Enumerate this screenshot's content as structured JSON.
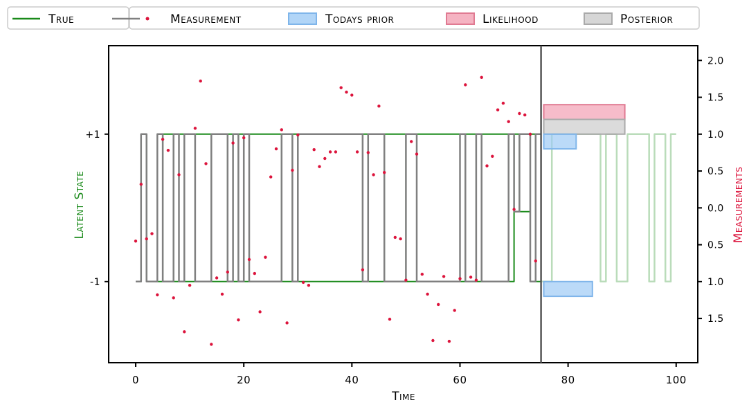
{
  "chart_data": {
    "type": "line",
    "title": "",
    "xlabel": "Time",
    "ylabel_left": "Latent State",
    "ylabel_right": "Measurements",
    "xlim": [
      -5,
      104
    ],
    "ylim": [
      -2.1,
      2.2
    ],
    "x_ticks": [
      0,
      20,
      40,
      60,
      80,
      100
    ],
    "x_tick_labels": [
      "0",
      "20",
      "40",
      "60",
      "80",
      "100"
    ],
    "left_ticks": [
      1,
      -1
    ],
    "left_tick_labels": [
      "+1",
      "-1"
    ],
    "right_ticks": [
      2.0,
      1.5,
      1.0,
      0.5,
      0.0,
      -0.5,
      -1.0,
      -1.5
    ],
    "right_tick_labels": [
      "2.0",
      "1.5",
      "1.0",
      "0.5",
      "0.0",
      "0.5",
      "1.0",
      "1.5"
    ],
    "grid": false,
    "legend_placement": "top",
    "legend": [
      {
        "key": "true",
        "label": "True",
        "kind": "line",
        "color": "#1a8a1a"
      },
      {
        "key": "mode",
        "label": "",
        "kind": "line",
        "color": "#808080"
      },
      {
        "key": "measurement",
        "label": "Measurement",
        "kind": "dot",
        "color": "#dc143c"
      },
      {
        "key": "prior",
        "label": "Todays prior",
        "kind": "patch",
        "color": "#9ecbf5",
        "edge": "#7fb5ea"
      },
      {
        "key": "likelihood",
        "label": "Likelihood",
        "kind": "patch",
        "color": "#f2a0b3",
        "edge": "#e07a92"
      },
      {
        "key": "posterior",
        "label": "Posterior",
        "kind": "patch",
        "color": "#cccccc",
        "edge": "#aaaaaa"
      }
    ],
    "current_time": 75,
    "state_series_x": [
      0,
      1,
      1,
      2,
      2,
      3,
      3,
      4,
      4,
      5,
      5,
      7,
      7,
      8,
      8,
      9,
      9,
      11,
      11,
      14,
      14,
      17,
      17,
      18,
      18,
      19,
      19,
      20,
      20,
      21,
      21,
      27,
      27,
      29,
      29,
      30,
      30,
      42,
      42,
      43,
      43,
      46,
      46,
      50,
      50,
      52,
      52,
      60,
      60,
      61,
      61,
      63,
      63,
      64,
      64,
      69,
      69,
      70,
      70,
      71,
      71,
      73,
      73,
      74,
      74,
      75
    ],
    "state_series_y": [
      -1,
      -1,
      1,
      1,
      -1,
      -1,
      -1,
      -1,
      -1,
      -1,
      1,
      1,
      -1,
      -1,
      1,
      1,
      -1,
      -1,
      1,
      1,
      -1,
      -1,
      1,
      1,
      -1,
      -1,
      1,
      1,
      -1,
      -1,
      1,
      1,
      -1,
      -1,
      1,
      1,
      -1,
      -1,
      1,
      1,
      -1,
      -1,
      1,
      1,
      -1,
      -1,
      1,
      1,
      -1,
      -1,
      1,
      1,
      -1,
      -1,
      1,
      1,
      -1,
      -1,
      1,
      1,
      -0.05,
      -0.05,
      1,
      1,
      -1,
      -1
    ],
    "mode_series_x": [
      0,
      1,
      1,
      2,
      2,
      4,
      4,
      5,
      5,
      7,
      7,
      8,
      8,
      9,
      9,
      11,
      11,
      14,
      14,
      17,
      17,
      18,
      18,
      19,
      19,
      20,
      20,
      21,
      21,
      27,
      27,
      29,
      29,
      30,
      30,
      42,
      42,
      43,
      43,
      46,
      46,
      50,
      50,
      52,
      52,
      60,
      60,
      61,
      61,
      63,
      63,
      64,
      64,
      69,
      69,
      70,
      70,
      71,
      71,
      73,
      73,
      74,
      74,
      75
    ],
    "mode_series_y": [
      -1,
      -1,
      1,
      1,
      -1,
      -1,
      1,
      1,
      -1,
      -1,
      1,
      1,
      -1,
      -1,
      1,
      1,
      -1,
      -1,
      1,
      1,
      -1,
      -1,
      1,
      1,
      -1,
      -1,
      1,
      1,
      -1,
      -1,
      1,
      1,
      -1,
      -1,
      1,
      1,
      -1,
      -1,
      1,
      1,
      -1,
      -1,
      1,
      1,
      -1,
      -1,
      1,
      1,
      -1,
      -1,
      1,
      1,
      -1,
      -1,
      1,
      1,
      -0.05,
      -0.05,
      1,
      1,
      -1,
      -1,
      1,
      1
    ],
    "future_series_x": [
      75,
      77,
      77,
      86,
      86,
      87,
      87,
      89,
      89,
      91,
      91,
      95,
      95,
      96,
      96,
      98,
      98,
      99,
      99,
      100
    ],
    "future_series_y": [
      -1,
      -1,
      1,
      1,
      -1,
      -1,
      1,
      1,
      -1,
      -1,
      1,
      1,
      -1,
      -1,
      1,
      1,
      -1,
      -1,
      1,
      1
    ],
    "measurements_x": [
      0,
      1,
      2,
      3,
      4,
      5,
      6,
      7,
      8,
      9,
      10,
      11,
      12,
      13,
      14,
      15,
      16,
      17,
      18,
      19,
      20,
      21,
      22,
      23,
      24,
      25,
      26,
      27,
      28,
      29,
      30,
      31,
      32,
      33,
      34,
      35,
      36,
      37,
      38,
      39,
      40,
      41,
      42,
      43,
      44,
      45,
      46,
      47,
      48,
      49,
      50,
      51,
      52,
      53,
      54,
      55,
      56,
      57,
      58,
      59,
      60,
      61,
      62,
      63,
      64,
      65,
      66,
      67,
      68,
      69,
      70,
      71,
      72,
      73,
      74
    ],
    "measurements_y": [
      -0.45,
      0.32,
      -0.42,
      -0.35,
      -1.18,
      0.93,
      0.78,
      -1.22,
      0.45,
      -1.68,
      -1.05,
      1.08,
      1.72,
      0.6,
      -1.85,
      -0.95,
      -1.17,
      -0.87,
      0.88,
      -1.52,
      0.95,
      -0.7,
      -0.89,
      -1.41,
      -0.67,
      0.42,
      0.8,
      1.06,
      -1.56,
      0.51,
      0.99,
      -1.01,
      -1.05,
      0.79,
      0.56,
      0.67,
      0.76,
      0.76,
      1.63,
      1.57,
      1.53,
      0.76,
      -0.84,
      0.75,
      0.45,
      1.38,
      0.48,
      -1.51,
      -0.4,
      -0.42,
      -0.98,
      0.9,
      0.73,
      -0.9,
      -1.17,
      -1.8,
      -1.31,
      -0.93,
      -1.81,
      -1.39,
      -0.96,
      1.67,
      -0.94,
      -0.98,
      1.77,
      0.57,
      0.7,
      1.33,
      1.42,
      1.17,
      -0.02,
      1.28,
      1.26,
      1.0,
      -0.72
    ],
    "bars": [
      {
        "key": "likelihood",
        "state": 1,
        "offset": 0.2,
        "height": 0.2,
        "width": 15
      },
      {
        "key": "posterior",
        "state": 1,
        "offset": 0.0,
        "height": 0.2,
        "width": 15
      },
      {
        "key": "prior",
        "state": 1,
        "offset": -0.2,
        "height": 0.2,
        "width": 6
      },
      {
        "key": "prior",
        "state": -1,
        "offset": -0.2,
        "height": 0.2,
        "width": 9
      }
    ]
  }
}
